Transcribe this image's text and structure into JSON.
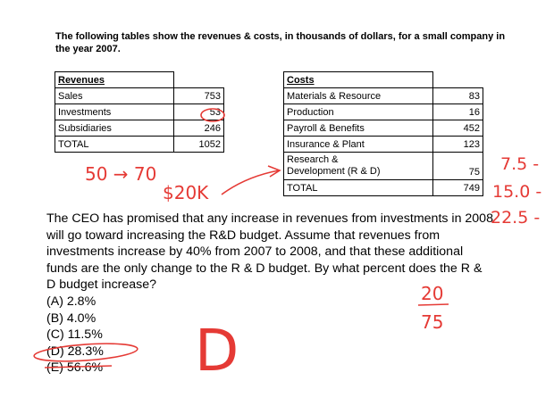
{
  "intro": "The following tables show the revenues & costs, in thousands of dollars, for a small company in the year 2007.",
  "revenues": {
    "header": "Revenues",
    "rows": [
      {
        "label": "Sales",
        "value": "753"
      },
      {
        "label": "Investments",
        "value": "53"
      },
      {
        "label": "Subsidiaries",
        "value": "246"
      },
      {
        "label": "TOTAL",
        "value": "1052"
      }
    ]
  },
  "costs": {
    "header": "Costs",
    "rows": [
      {
        "label": "Materials & Resource",
        "value": "83"
      },
      {
        "label": "Production",
        "value": "16"
      },
      {
        "label": "Payroll & Benefits",
        "value": "452"
      },
      {
        "label": "Insurance & Plant",
        "value": "123"
      },
      {
        "label_line1": "Research &",
        "label_line2": "Development (R & D)",
        "value": "75"
      },
      {
        "label": "TOTAL",
        "value": "749"
      }
    ]
  },
  "question": "The CEO has promised that any increase in revenues from investments in 2008 will go toward increasing the R&D budget.  Assume that revenues from investments increase by 40% from 2007 to 2008, and that these additional funds are the only change to the R & D budget. By what percent does the R & D budget increase?",
  "choices": [
    "(A) 2.8%",
    "(B) 4.0%",
    "(C) 11.5%",
    "(D) 28.3%",
    "(E) 56.6%"
  ],
  "annotations": {
    "color": "#e53a35",
    "arrow_note": "50 → 70",
    "money_note": "$20K",
    "steps": [
      "7.5 -",
      "15.0 -",
      "22.5 -"
    ],
    "fraction_top": "20",
    "fraction_bottom": "75",
    "answer": "D"
  }
}
